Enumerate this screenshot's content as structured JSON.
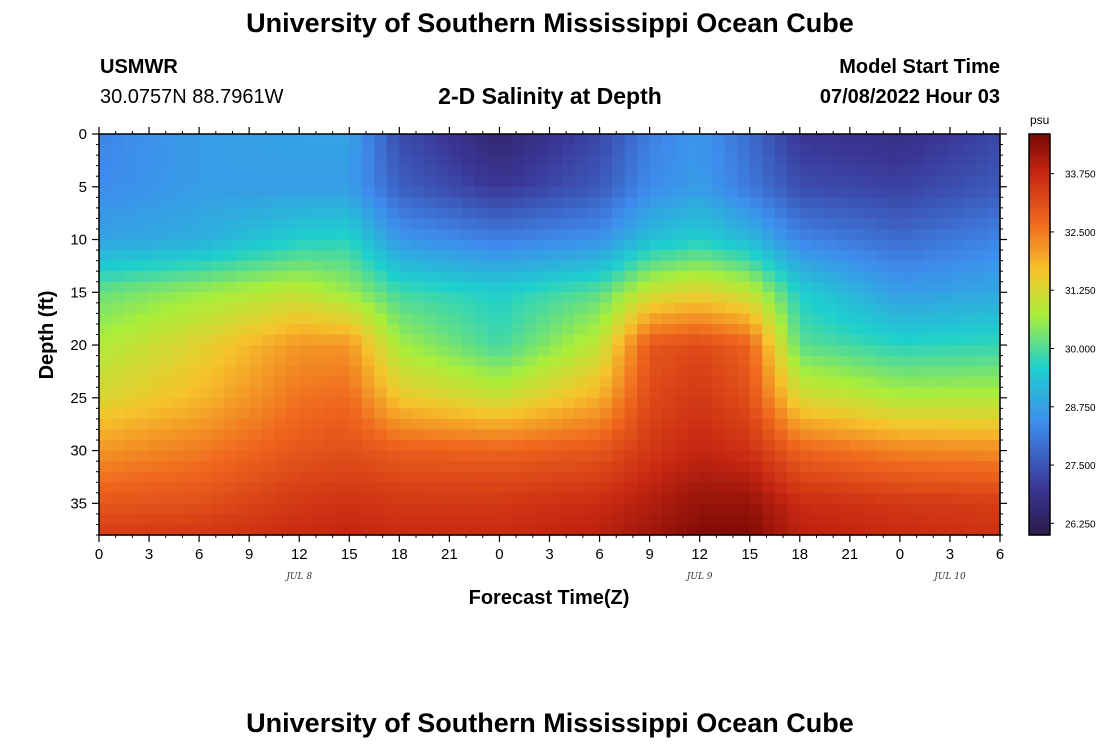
{
  "page": {
    "title": "University of Southern Mississippi Ocean Cube",
    "station": "USMWR",
    "coords": "30.0757N  88.7961W",
    "model_start_label": "Model Start Time",
    "model_start_value": "07/08/2022 Hour 03"
  },
  "chart_data": {
    "type": "heatmap",
    "subtitle": "2-D Salinity at Depth",
    "xlabel": "Forecast Time(Z)",
    "ylabel": "Depth (ft)",
    "x_tick_labels": [
      "0",
      "3",
      "6",
      "9",
      "12",
      "15",
      "18",
      "21",
      "0",
      "3",
      "6",
      "9",
      "12",
      "15",
      "18",
      "21",
      "0",
      "3",
      "6"
    ],
    "x_range_hours_from_jul8_00z": [
      0,
      54
    ],
    "date_labels": [
      {
        "label": "JUL 8",
        "hour": 12
      },
      {
        "label": "JUL 9",
        "hour": 36
      },
      {
        "label": "JUL 10",
        "hour": 51
      }
    ],
    "y_range_ft": [
      0,
      38
    ],
    "y_ticks": [
      0,
      5,
      10,
      15,
      20,
      25,
      30,
      35
    ],
    "y_inverted": true,
    "colorbar": {
      "units": "psu",
      "range": [
        26.0,
        34.6
      ],
      "ticks": [
        "26.250",
        "27.500",
        "28.750",
        "30.000",
        "31.250",
        "32.500",
        "33.750"
      ]
    },
    "time_hours": [
      0,
      6,
      12,
      15,
      18,
      24,
      30,
      33,
      36,
      39,
      42,
      48,
      54
    ],
    "depth_ft": [
      0,
      5,
      10,
      15,
      20,
      25,
      30,
      35,
      38
    ],
    "salinity_psu": [
      [
        28.3,
        28.7,
        28.8,
        28.8,
        27.4,
        26.5,
        27.3,
        28.2,
        28.6,
        27.9,
        27.0,
        26.8,
        27.3
      ],
      [
        28.4,
        28.7,
        28.7,
        28.7,
        27.7,
        27.0,
        27.6,
        28.4,
        28.7,
        28.1,
        27.4,
        27.2,
        27.6
      ],
      [
        28.8,
        29.0,
        29.6,
        29.7,
        28.6,
        28.2,
        28.5,
        29.3,
        29.6,
        29.2,
        28.3,
        27.9,
        28.3
      ],
      [
        30.2,
        30.6,
        31.0,
        30.6,
        29.9,
        29.6,
        30.1,
        31.1,
        31.4,
        31.0,
        29.6,
        28.7,
        28.9
      ],
      [
        30.8,
        31.4,
        32.2,
        32.2,
        30.7,
        29.9,
        31.0,
        33.0,
        33.2,
        32.8,
        30.1,
        29.7,
        29.8
      ],
      [
        31.3,
        31.8,
        32.6,
        32.7,
        31.6,
        31.1,
        31.9,
        33.2,
        33.5,
        33.1,
        31.3,
        30.8,
        30.8
      ],
      [
        32.2,
        32.5,
        33.0,
        33.1,
        32.9,
        32.8,
        33.0,
        33.5,
        33.8,
        33.6,
        32.8,
        32.4,
        32.3
      ],
      [
        33.0,
        33.1,
        33.5,
        33.6,
        33.5,
        33.5,
        33.7,
        34.0,
        34.3,
        34.3,
        33.7,
        33.5,
        33.4
      ],
      [
        33.4,
        33.5,
        33.7,
        33.8,
        33.7,
        33.7,
        33.9,
        34.2,
        34.5,
        34.5,
        33.9,
        33.7,
        33.6
      ]
    ]
  }
}
